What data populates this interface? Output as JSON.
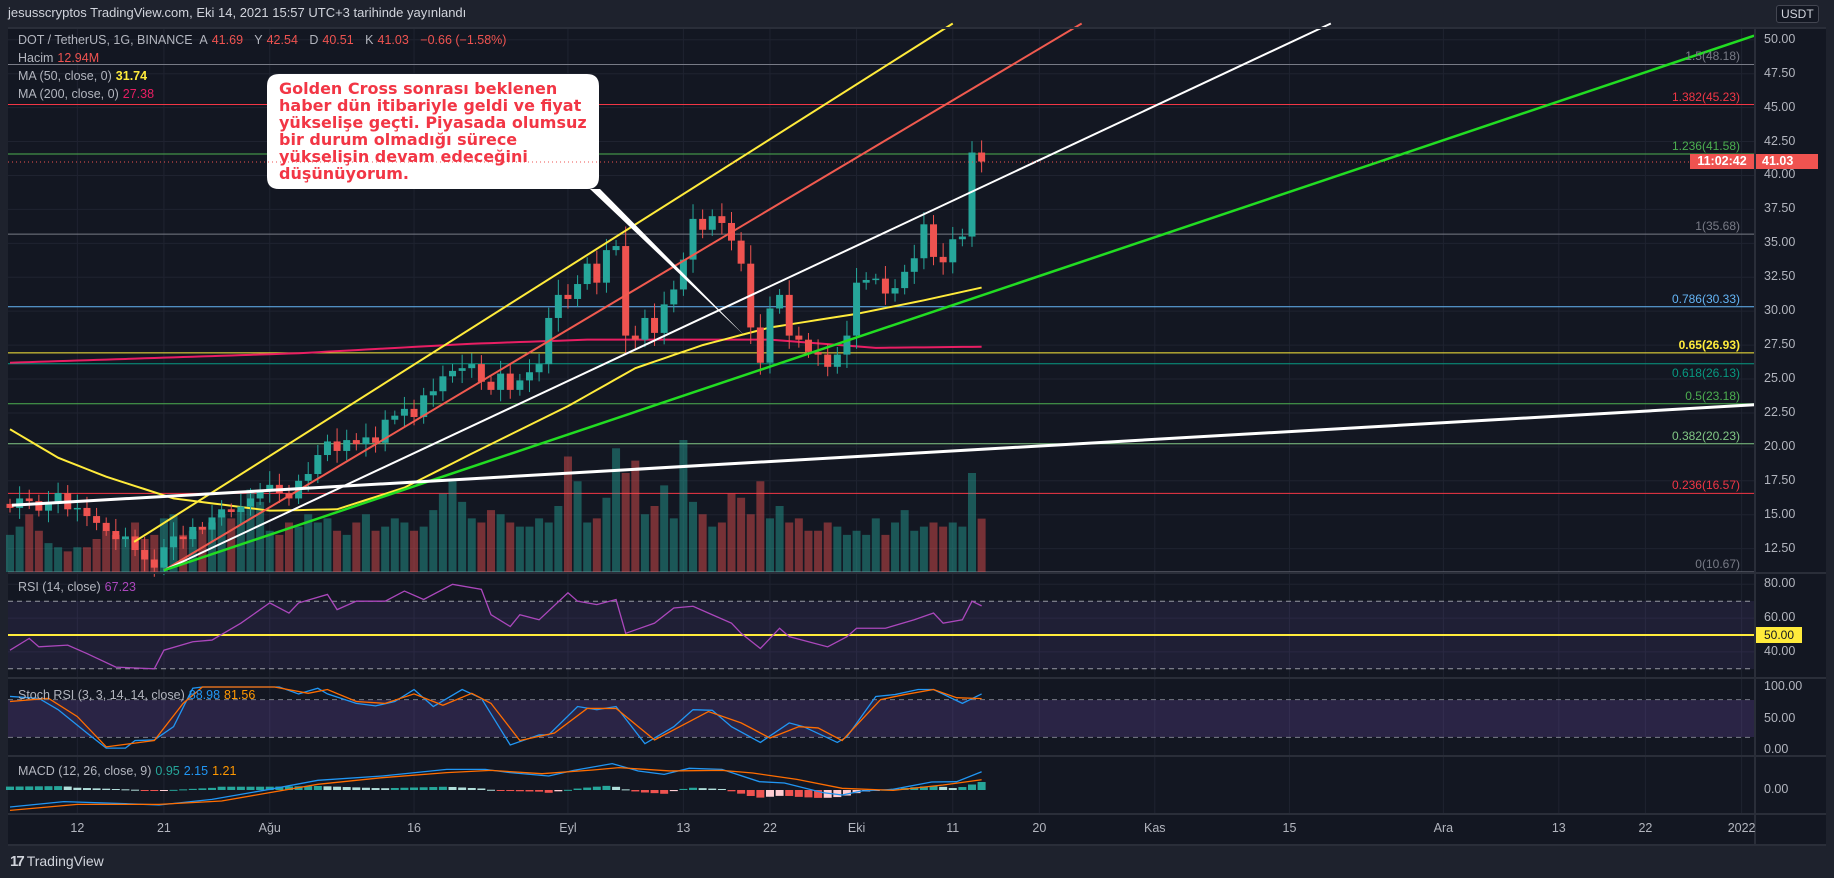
{
  "header": {
    "title": "jesusscryptos TradingView.com, Eki 14, 2021 15:57 UTC+3 tarihinde yayınlandı"
  },
  "legend": {
    "symbol": "DOT / TetherUS, 1G, BINANCE",
    "open_label": "A",
    "open": "41.69",
    "high_label": "Y",
    "high": "42.54",
    "low_label": "D",
    "low": "40.51",
    "close_label": "K",
    "close": "41.03",
    "change": "−0.66 (−1.58%)",
    "volume_label": "Hacim",
    "volume": "12.94M",
    "ma50_label": "MA (50, close, 0)",
    "ma50": "31.74",
    "ma200_label": "MA (200, close, 0)",
    "ma200": "27.38",
    "rsi_label": "RSI (14, close)",
    "rsi": "67.23",
    "stoch_label": "Stoch RSI (3, 3, 14, 14, close)",
    "stoch_k": "88.98",
    "stoch_d": "81.56",
    "macd_label": "MACD (12, 26, close, 9)",
    "macd_hist": "0.95",
    "macd": "2.15",
    "macd_signal": "1.21"
  },
  "callout": {
    "text": "Golden Cross sonrası beklenen haber dün itibariyle geldi ve fiyat yükselişe geçti. Piyasada olumsuz bir durum olmadığı sürece yükselişin devam edeceğini düşünüyorum."
  },
  "price_axis": {
    "currency": "USDT",
    "ticks": [
      "50.00",
      "47.50",
      "45.00",
      "42.50",
      "40.00",
      "37.50",
      "35.00",
      "32.50",
      "30.00",
      "27.50",
      "25.00",
      "22.50",
      "20.00",
      "17.50",
      "15.00",
      "12.50"
    ],
    "last_price": "41.03",
    "countdown": "11:02:42"
  },
  "rsi_axis": {
    "ticks": [
      "80.00",
      "60.00",
      "40.00"
    ],
    "highlight": "50.00"
  },
  "stoch_axis": {
    "ticks": [
      "100.00",
      "50.00",
      "0.00"
    ]
  },
  "macd_axis": {
    "ticks": [
      "0.00"
    ]
  },
  "time_axis": {
    "labels": [
      {
        "text": "12",
        "day": 7
      },
      {
        "text": "21",
        "day": 16
      },
      {
        "text": "Ağu",
        "day": 27
      },
      {
        "text": "16",
        "day": 42
      },
      {
        "text": "Eyl",
        "day": 58
      },
      {
        "text": "13",
        "day": 70
      },
      {
        "text": "22",
        "day": 79
      },
      {
        "text": "Eki",
        "day": 88
      },
      {
        "text": "11",
        "day": 98
      },
      {
        "text": "20",
        "day": 107
      },
      {
        "text": "Kas",
        "day": 119
      },
      {
        "text": "15",
        "day": 133
      },
      {
        "text": "Ara",
        "day": 149
      },
      {
        "text": "13",
        "day": 161
      },
      {
        "text": "22",
        "day": 170
      },
      {
        "text": "2022",
        "day": 180
      }
    ]
  },
  "footer": {
    "brand": "TradingView"
  },
  "colors": {
    "up": "#26a69a",
    "down": "#ef5350",
    "ma50": "#ffeb3b",
    "ma200": "#e91e63",
    "rsi": "#ab47bc",
    "stoch_k": "#2196f3",
    "stoch_d": "#ff6d00",
    "macd": "#2196f3",
    "signal": "#ff6d00"
  },
  "chart_data": {
    "type": "candlestick",
    "title": "DOT / TetherUS, 1G, BINANCE",
    "start_date": "2021-07-05",
    "closes": [
      15.5,
      16.2,
      16.0,
      15.3,
      15.8,
      16.6,
      15.4,
      15.5,
      14.9,
      14.4,
      13.8,
      13.2,
      13.4,
      12.4,
      11.7,
      11.1,
      12.6,
      13.4,
      13.2,
      14.1,
      13.9,
      14.8,
      15.4,
      15.2,
      15.6,
      16.2,
      16.8,
      17.2,
      16.6,
      16.2,
      17.5,
      18.0,
      19.4,
      20.4,
      19.7,
      20.5,
      20.2,
      20.7,
      20.3,
      22.0,
      22.3,
      22.8,
      22.2,
      23.8,
      24.1,
      25.2,
      25.6,
      25.8,
      26.1,
      24.8,
      24.2,
      25.4,
      24.2,
      24.9,
      25.5,
      26.1,
      29.5,
      31.2,
      30.9,
      32.0,
      33.5,
      32.1,
      34.5,
      34.8,
      28.2,
      27.9,
      29.5,
      28.4,
      30.5,
      31.6,
      33.8,
      36.8,
      36.0,
      37.0,
      36.5,
      35.2,
      33.5,
      28.8,
      26.2,
      30.2,
      31.2,
      28.2,
      27.9,
      27.0,
      26.8,
      25.9,
      26.8,
      28.2,
      32.1,
      32.3,
      32.4,
      31.3,
      31.7,
      32.9,
      33.9,
      36.4,
      34.0,
      33.6,
      35.3,
      35.5,
      41.69,
      41.03
    ],
    "volumes_m": [
      9,
      11,
      14,
      10,
      7,
      6,
      5,
      6,
      6,
      8,
      10,
      9,
      8,
      12,
      8,
      9,
      13,
      14,
      9,
      10,
      11,
      12,
      14,
      13,
      15,
      20,
      17,
      10,
      9,
      12,
      11,
      14,
      12,
      13,
      10,
      9,
      12,
      14,
      10,
      11,
      13,
      12,
      10,
      11,
      15,
      19,
      22,
      17,
      13,
      12,
      15,
      14,
      12,
      11,
      11,
      13,
      12,
      16,
      28,
      22,
      12,
      13,
      18,
      30,
      24,
      27,
      14,
      16,
      21,
      13,
      32,
      17,
      14,
      11,
      12,
      19,
      18,
      14,
      22,
      13,
      16,
      12,
      13,
      10,
      10,
      12,
      11,
      9,
      10,
      9,
      13,
      9,
      12,
      15,
      10,
      11,
      12,
      11,
      12,
      11,
      24,
      12.94
    ],
    "price_range": [
      10.5,
      50.5
    ],
    "ma50": [
      [
        0,
        21.3
      ],
      [
        5,
        19.2
      ],
      [
        10,
        17.8
      ],
      [
        17,
        16.2
      ],
      [
        27,
        15.3
      ],
      [
        34,
        15.4
      ],
      [
        41,
        17.0
      ],
      [
        48,
        19.5
      ],
      [
        58,
        23.0
      ],
      [
        65,
        25.8
      ],
      [
        72,
        27.5
      ],
      [
        79,
        28.8
      ],
      [
        88,
        29.8
      ],
      [
        95,
        30.8
      ],
      [
        101,
        31.74
      ]
    ],
    "ma200": [
      [
        0,
        26.2
      ],
      [
        30,
        26.9
      ],
      [
        48,
        27.6
      ],
      [
        60,
        27.9
      ],
      [
        79,
        27.9
      ],
      [
        90,
        27.3
      ],
      [
        101,
        27.38
      ]
    ],
    "fib_levels": [
      {
        "label": "1.5(48.18)",
        "price": 48.18,
        "color": "#787b86"
      },
      {
        "label": "1.382(45.23)",
        "price": 45.23,
        "color": "#f23645"
      },
      {
        "label": "1.236(41.58)",
        "price": 41.58,
        "color": "#4caf50"
      },
      {
        "label": "1(35.68)",
        "price": 35.68,
        "color": "#787b86"
      },
      {
        "label": "0.786(30.33)",
        "price": 30.33,
        "color": "#64b5f6"
      },
      {
        "label": "0.65(26.93)",
        "price": 26.93,
        "color": "#ffeb3b"
      },
      {
        "label": "0.618(26.13)",
        "price": 26.13,
        "color": "#089981"
      },
      {
        "label": "0.5(23.18)",
        "price": 23.18,
        "color": "#4caf50"
      },
      {
        "label": "0.382(20.23)",
        "price": 20.23,
        "color": "#81c784"
      },
      {
        "label": "0.236(16.57)",
        "price": 16.57,
        "color": "#f23645"
      },
      {
        "label": "0(10.67)",
        "price": 10.67,
        "color": "#787b86"
      }
    ],
    "trendlines": [
      {
        "color": "#ffeb3b",
        "from": [
          12.9,
          13.0
        ],
        "to": [
          98,
          51.2
        ],
        "width": 2
      },
      {
        "color": "#f05a4f",
        "from": [
          16,
          10.9
        ],
        "to": [
          111.4,
          51.2
        ],
        "width": 2
      },
      {
        "color": "#ffffff",
        "from": [
          16,
          10.9
        ],
        "to": [
          137.3,
          51.2
        ],
        "width": 2
      },
      {
        "color": "#22dd22",
        "from": [
          16,
          10.9
        ],
        "to": [
          181.3,
          50.3
        ],
        "width": 2.5
      },
      {
        "color": "#ffffff",
        "from": [
          0.2,
          15.7
        ],
        "to": [
          181.3,
          23.1
        ],
        "width": 3
      }
    ],
    "rsi": {
      "upper": 70,
      "lower": 30,
      "mid": 50,
      "points": [
        [
          0,
          41
        ],
        [
          2,
          48
        ],
        [
          3,
          43
        ],
        [
          6,
          44
        ],
        [
          8,
          39
        ],
        [
          11,
          31
        ],
        [
          15,
          30
        ],
        [
          16,
          41
        ],
        [
          19,
          46
        ],
        [
          21,
          47
        ],
        [
          24,
          57
        ],
        [
          27,
          69
        ],
        [
          29,
          63
        ],
        [
          30,
          69
        ],
        [
          33,
          74
        ],
        [
          34,
          65
        ],
        [
          36,
          70
        ],
        [
          39,
          70
        ],
        [
          41,
          76
        ],
        [
          43,
          71
        ],
        [
          46,
          80
        ],
        [
          49,
          77
        ],
        [
          50,
          62
        ],
        [
          52,
          55
        ],
        [
          53,
          62
        ],
        [
          55,
          59
        ],
        [
          58,
          75
        ],
        [
          59,
          70
        ],
        [
          61,
          68
        ],
        [
          63,
          71
        ],
        [
          64,
          51
        ],
        [
          65,
          53
        ],
        [
          67,
          57
        ],
        [
          69,
          66
        ],
        [
          71,
          67
        ],
        [
          73,
          62
        ],
        [
          75,
          57
        ],
        [
          76,
          51
        ],
        [
          78,
          42
        ],
        [
          80,
          54
        ],
        [
          81,
          49
        ],
        [
          85,
          43
        ],
        [
          87,
          49
        ],
        [
          88,
          54
        ],
        [
          91,
          54
        ],
        [
          94,
          59
        ],
        [
          96,
          63
        ],
        [
          97,
          57
        ],
        [
          99,
          59
        ],
        [
          100,
          70
        ],
        [
          101,
          67.23
        ]
      ]
    },
    "stoch_rsi": {
      "upper": 80,
      "lower": 20,
      "k": [
        [
          0,
          85
        ],
        [
          3,
          82
        ],
        [
          5,
          64
        ],
        [
          8,
          27
        ],
        [
          10,
          3
        ],
        [
          12,
          3
        ],
        [
          13,
          15
        ],
        [
          15,
          16
        ],
        [
          17,
          37
        ],
        [
          19,
          98
        ],
        [
          20,
          100
        ],
        [
          28,
          100
        ],
        [
          30,
          89
        ],
        [
          32,
          98
        ],
        [
          33,
          89
        ],
        [
          36,
          74
        ],
        [
          38,
          70
        ],
        [
          40,
          77
        ],
        [
          42,
          96
        ],
        [
          44,
          69
        ],
        [
          47,
          96
        ],
        [
          49,
          82
        ],
        [
          52,
          8
        ],
        [
          55,
          24
        ],
        [
          56,
          24
        ],
        [
          59,
          69
        ],
        [
          61,
          64
        ],
        [
          63,
          69
        ],
        [
          66,
          10
        ],
        [
          69,
          37
        ],
        [
          71,
          64
        ],
        [
          73,
          63
        ],
        [
          75,
          37
        ],
        [
          78,
          12
        ],
        [
          81,
          43
        ],
        [
          82.5,
          37
        ],
        [
          86,
          12
        ],
        [
          87,
          21
        ],
        [
          90,
          85
        ],
        [
          92,
          88
        ],
        [
          94.4,
          96
        ],
        [
          96,
          96
        ],
        [
          99,
          74
        ],
        [
          101,
          88.98
        ]
      ],
      "d": [
        [
          0,
          77
        ],
        [
          4,
          82
        ],
        [
          7,
          53
        ],
        [
          10,
          5
        ],
        [
          15,
          15
        ],
        [
          18,
          74
        ],
        [
          20,
          100
        ],
        [
          27.5,
          100
        ],
        [
          31,
          90
        ],
        [
          33,
          96
        ],
        [
          36,
          77
        ],
        [
          39,
          74
        ],
        [
          42,
          89
        ],
        [
          45,
          71
        ],
        [
          48,
          90
        ],
        [
          50,
          74
        ],
        [
          53,
          15
        ],
        [
          56.6,
          27
        ],
        [
          60,
          66
        ],
        [
          63,
          66
        ],
        [
          67,
          16
        ],
        [
          72.6,
          61
        ],
        [
          76,
          43
        ],
        [
          79,
          19
        ],
        [
          82,
          37
        ],
        [
          84,
          35
        ],
        [
          86.5,
          15
        ],
        [
          90.5,
          80
        ],
        [
          93,
          88
        ],
        [
          96,
          96
        ],
        [
          98.4,
          83
        ],
        [
          101,
          81.56
        ]
      ]
    },
    "macd": {
      "macd": [
        [
          0,
          -2.0
        ],
        [
          5.6,
          -1.37
        ],
        [
          12,
          -1.61
        ],
        [
          15.5,
          -1.76
        ],
        [
          21,
          -1.1
        ],
        [
          27,
          0.08
        ],
        [
          32,
          1.14
        ],
        [
          38.7,
          1.65
        ],
        [
          45.4,
          2.43
        ],
        [
          49.4,
          2.43
        ],
        [
          52,
          2.04
        ],
        [
          56,
          1.65
        ],
        [
          58.6,
          2.31
        ],
        [
          62.6,
          3.1
        ],
        [
          65.3,
          2.24
        ],
        [
          68,
          1.84
        ],
        [
          70.6,
          2.55
        ],
        [
          74,
          2.43
        ],
        [
          77.9,
          0.98
        ],
        [
          80.5,
          0.82
        ],
        [
          84.5,
          -0.31
        ],
        [
          86.5,
          -0.59
        ],
        [
          88.5,
          -0.12
        ],
        [
          91.8,
          0.08
        ],
        [
          95.8,
          0.94
        ],
        [
          98.4,
          0.98
        ],
        [
          101,
          2.15
        ]
      ],
      "signal": [
        [
          0,
          -2.4
        ],
        [
          7,
          -1.69
        ],
        [
          15.5,
          -1.69
        ],
        [
          22,
          -1.29
        ],
        [
          27,
          -0.31
        ],
        [
          32,
          0.67
        ],
        [
          38.7,
          1.45
        ],
        [
          45.4,
          2.04
        ],
        [
          50,
          2.31
        ],
        [
          55.3,
          1.92
        ],
        [
          60.6,
          2.35
        ],
        [
          63.3,
          2.63
        ],
        [
          68.6,
          2.24
        ],
        [
          74,
          2.31
        ],
        [
          77.2,
          2.0
        ],
        [
          81.8,
          1.25
        ],
        [
          86.5,
          0.2
        ],
        [
          91.8,
          -0.04
        ],
        [
          97,
          0.59
        ],
        [
          101,
          1.21
        ]
      ]
    }
  }
}
